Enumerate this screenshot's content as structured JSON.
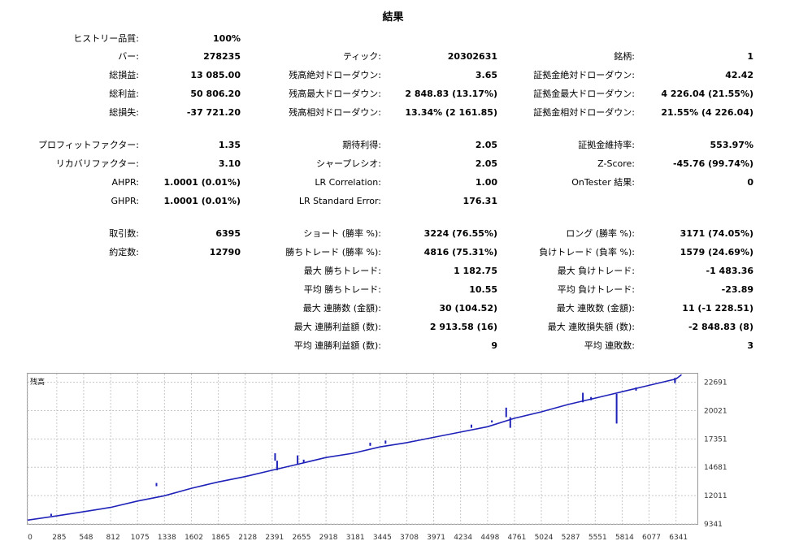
{
  "report": {
    "title": "結果",
    "rows": [
      {
        "name": "row-history",
        "label1": "ヒストリー品質:",
        "value1": "100%"
      },
      {
        "name": "row-1",
        "label1": "バー:",
        "value1": "278235",
        "label2": "ティック:",
        "value2": "20302631",
        "label3": "銘柄:",
        "value3": "1"
      },
      {
        "name": "row-2",
        "label1": "総損益:",
        "value1": "13 085.00",
        "label2": "残高絶対ドローダウン:",
        "value2": "3.65",
        "label3": "証拠金絶対ドローダウン:",
        "value3": "42.42"
      },
      {
        "name": "row-3",
        "label1": "総利益:",
        "value1": "50 806.20",
        "label2": "残高最大ドローダウン:",
        "value2": "2 848.83 (13.17%)",
        "label3": "証拠金最大ドローダウン:",
        "value3": "4 226.04 (21.55%)"
      },
      {
        "name": "row-4",
        "label1": "総損失:",
        "value1": "-37 721.20",
        "label2": "残高相対ドローダウン:",
        "value2": "13.34% (2 161.85)",
        "label3": "証拠金相対ドローダウン:",
        "value3": "21.55% (4 226.04)"
      },
      {
        "name": "row-5",
        "label1": "プロフィットファクター:",
        "value1": "1.35",
        "label2": "期待利得:",
        "value2": "2.05",
        "label3": "証拠金維持率:",
        "value3": "553.97%"
      },
      {
        "name": "row-6",
        "label1": "リカバリファクター:",
        "value1": "3.10",
        "label2": "シャープレシオ:",
        "value2": "2.05",
        "label3": "Z-Score:",
        "value3": "-45.76 (99.74%)"
      },
      {
        "name": "row-7",
        "label1": "AHPR:",
        "value1": "1.0001 (0.01%)",
        "label2": "LR Correlation:",
        "value2": "1.00",
        "label3": "OnTester 結果:",
        "value3": "0"
      },
      {
        "name": "row-8",
        "label1": "GHPR:",
        "value1": "1.0001 (0.01%)",
        "label2": "LR Standard Error:",
        "value2": "176.31"
      },
      {
        "name": "row-9",
        "label1": "取引数:",
        "value1": "6395",
        "label2": "ショート (勝率 %):",
        "value2": "3224 (76.55%)",
        "label3": "ロング (勝率 %):",
        "value3": "3171 (74.05%)"
      },
      {
        "name": "row-10",
        "label1": "約定数:",
        "value1": "12790",
        "label2": "勝ちトレード (勝率 %):",
        "value2": "4816 (75.31%)",
        "label3": "負けトレード (負率 %):",
        "value3": "1579 (24.69%)"
      },
      {
        "name": "row-11",
        "label2": "最大 勝ちトレード:",
        "value2": "1 182.75",
        "label3": "最大 負けトレード:",
        "value3": "-1 483.36"
      },
      {
        "name": "row-12",
        "label2": "平均 勝ちトレード:",
        "value2": "10.55",
        "label3": "平均 負けトレード:",
        "value3": "-23.89"
      },
      {
        "name": "row-13",
        "label2": "最大 連勝数 (金額):",
        "value2": "30 (104.52)",
        "label3": "最大 連敗数 (金額):",
        "value3": "11 (-1 228.51)"
      },
      {
        "name": "row-14",
        "label2": "最大 連勝利益額 (数):",
        "value2": "2 913.58 (16)",
        "label3": "最大 連敗損失額 (数):",
        "value3": "-2 848.83 (8)"
      },
      {
        "name": "row-15",
        "label2": "平均 連勝利益額 (数):",
        "value2": "9",
        "label3": "平均 連敗数:",
        "value3": "3"
      }
    ]
  },
  "chart_data": {
    "type": "line",
    "ylabel": "残高",
    "xlim": [
      0,
      6550
    ],
    "ylim": [
      9341,
      23500
    ],
    "x_ticks": [
      0,
      285,
      548,
      812,
      1075,
      1338,
      1602,
      1865,
      2128,
      2391,
      2655,
      2918,
      3181,
      3445,
      3708,
      3971,
      4234,
      4498,
      4761,
      5024,
      5287,
      5551,
      5814,
      6077,
      6341
    ],
    "y_ticks": [
      9341,
      12011,
      14681,
      17351,
      20021,
      22691
    ],
    "grid": true,
    "colors": {
      "line": "#1f22b8",
      "grid": "#c8c8c8",
      "frame": "#9a9a9a"
    },
    "series": [
      {
        "values": [
          [
            0,
            9700
          ],
          [
            285,
            10100
          ],
          [
            548,
            10500
          ],
          [
            812,
            10900
          ],
          [
            1075,
            11500
          ],
          [
            1338,
            12000
          ],
          [
            1602,
            12700
          ],
          [
            1865,
            13300
          ],
          [
            2128,
            13800
          ],
          [
            2391,
            14400
          ],
          [
            2655,
            15000
          ],
          [
            2918,
            15600
          ],
          [
            3181,
            16000
          ],
          [
            3445,
            16600
          ],
          [
            3708,
            17000
          ],
          [
            3971,
            17500
          ],
          [
            4234,
            18000
          ],
          [
            4498,
            18500
          ],
          [
            4761,
            19300
          ],
          [
            5024,
            19900
          ],
          [
            5287,
            20600
          ],
          [
            5551,
            21200
          ],
          [
            5814,
            21800
          ],
          [
            6077,
            22400
          ],
          [
            6341,
            23000
          ],
          [
            6395,
            23400
          ]
        ]
      }
    ],
    "spikes": [
      [
        230,
        10100,
        10300
      ],
      [
        1260,
        12900,
        13200
      ],
      [
        2420,
        15300,
        16000
      ],
      [
        2440,
        14400,
        15300
      ],
      [
        2640,
        15000,
        15800
      ],
      [
        2700,
        15100,
        15400
      ],
      [
        3350,
        16700,
        17000
      ],
      [
        3500,
        16900,
        17200
      ],
      [
        4340,
        18400,
        18700
      ],
      [
        4540,
        18900,
        19100
      ],
      [
        4680,
        19400,
        20300
      ],
      [
        4720,
        18400,
        19400
      ],
      [
        5430,
        20800,
        21700
      ],
      [
        5510,
        21000,
        21300
      ],
      [
        5760,
        18800,
        21600
      ],
      [
        5950,
        21900,
        22200
      ],
      [
        6330,
        22600,
        23100
      ]
    ]
  }
}
